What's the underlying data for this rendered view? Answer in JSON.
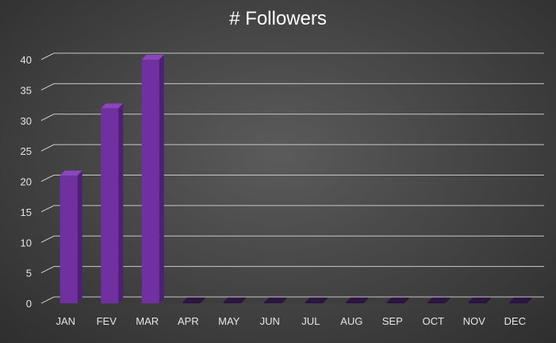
{
  "chart_data": {
    "type": "bar",
    "title": "# Followers",
    "xlabel": "",
    "ylabel": "",
    "categories": [
      "JAN",
      "FEV",
      "MAR",
      "APR",
      "MAY",
      "JUN",
      "JUL",
      "AUG",
      "SEP",
      "OCT",
      "NOV",
      "DEC"
    ],
    "values": [
      21,
      32,
      40,
      0,
      0,
      0,
      0,
      0,
      0,
      0,
      0,
      0
    ],
    "ylim": [
      0,
      40
    ],
    "yticks": [
      0,
      5,
      10,
      15,
      20,
      25,
      30,
      35,
      40
    ],
    "grid": true,
    "legend": "none",
    "bar_style": "3d",
    "colors": {
      "bar_front": "#7030a0",
      "bar_side": "#4f1f78",
      "bar_top": "#8a46bd",
      "gridline": "#c8c8c8",
      "text": "#e6e6e6",
      "title": "#ffffff"
    }
  }
}
